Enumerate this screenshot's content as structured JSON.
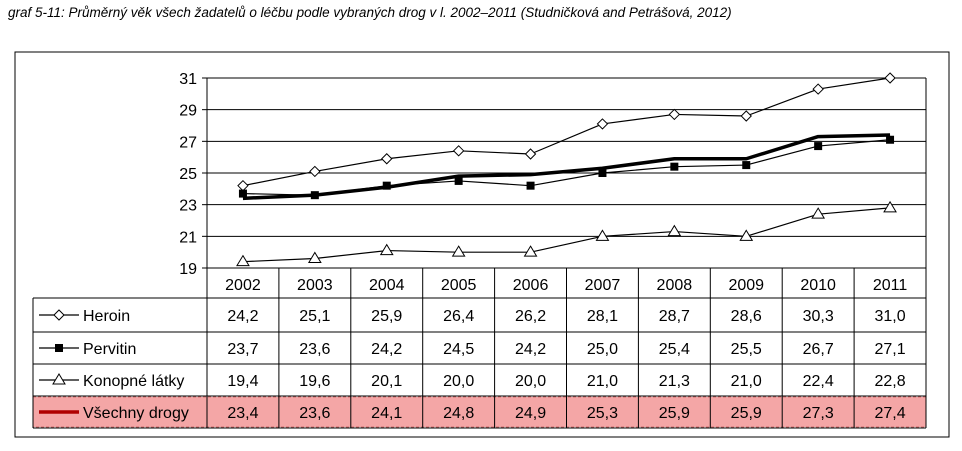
{
  "caption": "graf 5-11: Průměrný věk všech žadatelů o léčbu podle vybraných drog v l. 2002–2011 (Studničková and Petrášová, 2012)",
  "chart_data": {
    "type": "line",
    "x": [
      "2002",
      "2003",
      "2004",
      "2005",
      "2006",
      "2007",
      "2008",
      "2009",
      "2010",
      "2011"
    ],
    "ylim": [
      19,
      31
    ],
    "yticks": [
      19,
      21,
      23,
      25,
      27,
      29,
      31
    ],
    "grid": true,
    "legend": "data table below chart",
    "series": [
      {
        "name": "Heroin",
        "marker": "diamond-open",
        "color": "#000000",
        "highlight": false,
        "values": [
          24.2,
          25.1,
          25.9,
          26.4,
          26.2,
          28.1,
          28.7,
          28.6,
          30.3,
          31.0
        ],
        "labels": [
          "24,2",
          "25,1",
          "25,9",
          "26,4",
          "26,2",
          "28,1",
          "28,7",
          "28,6",
          "30,3",
          "31,0"
        ]
      },
      {
        "name": "Pervitin",
        "marker": "square-filled",
        "color": "#000000",
        "highlight": false,
        "values": [
          23.7,
          23.6,
          24.2,
          24.5,
          24.2,
          25.0,
          25.4,
          25.5,
          26.7,
          27.1
        ],
        "labels": [
          "23,7",
          "23,6",
          "24,2",
          "24,5",
          "24,2",
          "25,0",
          "25,4",
          "25,5",
          "26,7",
          "27,1"
        ]
      },
      {
        "name": "Konopné látky",
        "marker": "triangle-open",
        "color": "#000000",
        "highlight": false,
        "values": [
          19.4,
          19.6,
          20.1,
          20.0,
          20.0,
          21.0,
          21.3,
          21.0,
          22.4,
          22.8
        ],
        "labels": [
          "19,4",
          "19,6",
          "20,1",
          "20,0",
          "20,0",
          "21,0",
          "21,3",
          "21,0",
          "22,4",
          "22,8"
        ]
      },
      {
        "name": "Všechny drogy",
        "marker": "none",
        "color": "#000000",
        "legend_color": "#b00000",
        "highlight": true,
        "values": [
          23.4,
          23.6,
          24.1,
          24.8,
          24.9,
          25.3,
          25.9,
          25.9,
          27.3,
          27.4
        ],
        "labels": [
          "23,4",
          "23,6",
          "24,1",
          "24,8",
          "24,9",
          "25,3",
          "25,9",
          "25,9",
          "27,3",
          "27,4"
        ]
      }
    ],
    "highlight_color": "#f4a6a6"
  }
}
